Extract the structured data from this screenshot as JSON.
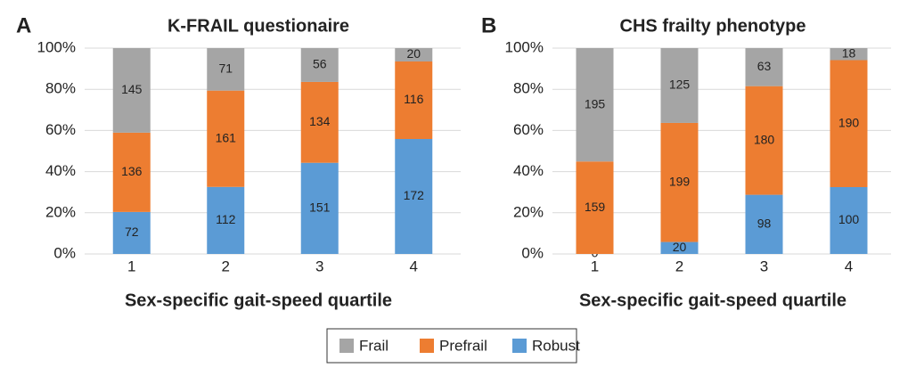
{
  "chart_data": [
    {
      "type": "bar",
      "stacking": "percent",
      "panel_label": "A",
      "title": "K-FRAIL questionaire",
      "x_label": "Sex-specific gait-speed quartile",
      "categories": [
        "1",
        "2",
        "3",
        "4"
      ],
      "series": [
        {
          "name": "Frail",
          "color": "#a5a5a5",
          "values": [
            145,
            71,
            56,
            20
          ]
        },
        {
          "name": "Prefrail",
          "color": "#ed7d31",
          "values": [
            136,
            161,
            134,
            116
          ]
        },
        {
          "name": "Robust",
          "color": "#5b9bd5",
          "values": [
            72,
            112,
            151,
            172
          ]
        }
      ],
      "ylim": [
        0,
        100
      ],
      "yticks": [
        {
          "value": 0,
          "label": "0%"
        },
        {
          "value": 20,
          "label": "20%"
        },
        {
          "value": 40,
          "label": "40%"
        },
        {
          "value": 60,
          "label": "60%"
        },
        {
          "value": 80,
          "label": "80%"
        },
        {
          "value": 100,
          "label": "100%"
        }
      ],
      "grid": true
    },
    {
      "type": "bar",
      "stacking": "percent",
      "panel_label": "B",
      "title": "CHS frailty phenotype",
      "x_label": "Sex-specific gait-speed quartile",
      "categories": [
        "1",
        "2",
        "3",
        "4"
      ],
      "series": [
        {
          "color": "#a5a5a5",
          "values": [
            195,
            125,
            63,
            18
          ]
        },
        {
          "color": "#ed7d31",
          "values": [
            159,
            199,
            180,
            190
          ]
        },
        {
          "color": "#5b9bd5",
          "values": [
            0,
            20,
            98,
            100
          ]
        }
      ],
      "ylim": [
        0,
        100
      ],
      "yticks": [
        {
          "value": 0,
          "label": "0%"
        },
        {
          "value": 20,
          "label": "20%"
        },
        {
          "value": 40,
          "label": "40%"
        },
        {
          "value": 60,
          "label": "60%"
        },
        {
          "value": 80,
          "label": "80%"
        },
        {
          "value": 100,
          "label": "100%"
        }
      ],
      "grid": true
    }
  ]
}
